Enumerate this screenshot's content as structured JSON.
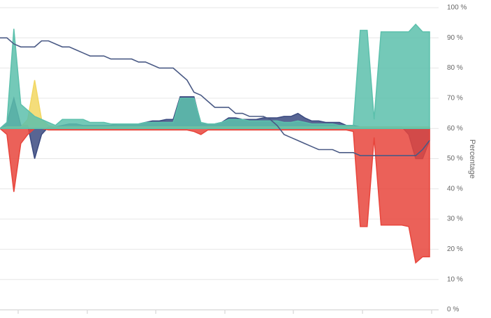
{
  "chart_data": {
    "type": "area",
    "y_axis_title": "Percentage",
    "ylim": [
      0,
      100
    ],
    "yticks": [
      {
        "value": 0,
        "label": "0 %"
      },
      {
        "value": 10,
        "label": "10 %"
      },
      {
        "value": 20,
        "label": "20 %"
      },
      {
        "value": 30,
        "label": "30 %"
      },
      {
        "value": 40,
        "label": "40 %"
      },
      {
        "value": 50,
        "label": "50 %"
      },
      {
        "value": 60,
        "label": "60 %"
      },
      {
        "value": 70,
        "label": "70 %"
      },
      {
        "value": 80,
        "label": "80 %"
      },
      {
        "value": 90,
        "label": "90 %"
      },
      {
        "value": 100,
        "label": "100 %"
      }
    ],
    "grid": true,
    "area_base": 60,
    "categories": [
      null,
      null,
      null,
      null,
      null,
      null,
      null,
      null,
      null,
      null,
      null,
      null,
      null,
      null,
      null,
      null,
      null,
      null,
      null,
      null,
      null,
      null,
      null,
      null,
      null,
      null,
      null,
      null,
      null,
      null,
      null,
      null,
      null,
      null,
      null,
      null,
      null,
      null,
      null,
      null,
      null,
      null,
      null,
      null,
      null,
      null,
      null,
      null,
      null,
      null,
      null,
      null,
      null,
      null,
      null,
      null,
      null,
      null,
      null,
      null,
      null,
      null,
      null
    ],
    "series": [
      {
        "kind": "area",
        "color": "#3b4a80",
        "values": [
          60,
          62,
          70,
          61,
          61,
          50,
          58,
          60.5,
          60.5,
          61,
          61.5,
          61.5,
          61,
          61,
          61,
          61,
          61,
          61.5,
          61.5,
          61.5,
          61.5,
          62,
          62.5,
          62.5,
          63,
          63,
          70.5,
          70.5,
          70.5,
          61.5,
          61.5,
          61.5,
          62,
          63.5,
          63.5,
          63,
          63,
          63,
          63.5,
          63.5,
          63.5,
          64,
          64,
          65,
          63.5,
          62.5,
          62.5,
          62,
          62,
          62,
          61,
          61,
          60.5,
          60.5,
          60.5,
          60.5,
          60.5,
          60.5,
          60.5,
          58,
          50,
          50,
          56
        ]
      },
      {
        "kind": "area",
        "color": "#e8453c",
        "values": [
          60,
          58,
          39,
          55,
          58,
          60,
          60,
          59.5,
          59.5,
          59.5,
          59.5,
          59.5,
          59.5,
          59.5,
          59.5,
          59.5,
          59.5,
          59.5,
          59.5,
          59.5,
          59.5,
          59.5,
          59.5,
          59.5,
          59.5,
          59.5,
          59.5,
          59.5,
          59,
          58,
          59.5,
          59.5,
          59.5,
          59.5,
          59.5,
          59.5,
          59.5,
          59.5,
          59.5,
          59.5,
          59.5,
          59.5,
          59.5,
          59.5,
          59.5,
          59.5,
          59.5,
          59.5,
          59.5,
          59.5,
          59.5,
          59,
          27.5,
          27.5,
          57,
          28,
          28,
          28,
          28,
          27.5,
          15.5,
          17.5,
          17.5
        ]
      },
      {
        "kind": "area",
        "color": "#f2d763",
        "values": [
          60,
          60.5,
          60.5,
          60.5,
          63,
          76,
          63,
          61,
          60.5,
          60.5,
          60.5,
          60.5,
          60.5,
          60.5,
          60.5,
          60.5,
          60.5,
          60.5,
          60.5,
          60.5,
          60.5,
          60.5,
          60.5,
          60.5,
          60.5,
          60.5,
          60.5,
          60.5,
          60.5,
          60.5,
          60.5,
          60.5,
          60.5,
          60.5,
          60.5,
          60.5,
          60.5,
          60.5,
          60.5,
          60.5,
          60.5,
          60.5,
          60.5,
          60.5,
          60.5,
          60.5,
          60.5,
          60.5,
          60.5,
          60.5,
          60.5,
          60.5,
          60.5,
          60.5,
          60.5,
          60.5,
          60.5,
          60.5,
          60.5,
          60.5,
          60.5,
          60.5,
          60.5
        ]
      },
      {
        "kind": "area",
        "color": "#5cc0ac",
        "values": [
          60,
          62,
          93,
          68,
          66,
          64,
          63,
          62,
          61,
          63,
          63,
          63,
          63,
          62,
          62,
          62,
          61.5,
          61.5,
          61.5,
          61.5,
          61.5,
          62,
          62,
          62,
          62,
          62,
          70,
          70,
          70,
          62,
          61.5,
          61.5,
          62,
          63,
          63,
          63,
          62.5,
          62.5,
          62.5,
          62.5,
          62.5,
          62,
          62,
          62.5,
          62,
          61.5,
          61.5,
          61.5,
          61.5,
          61,
          61,
          61,
          92.5,
          92.5,
          63,
          92,
          92,
          92,
          92,
          92,
          94.5,
          92,
          92
        ]
      },
      {
        "kind": "line",
        "color": "#4a5a85",
        "values": [
          90,
          90,
          88,
          87,
          87,
          87,
          89,
          89,
          88,
          87,
          87,
          86,
          85,
          84,
          84,
          84,
          83,
          83,
          83,
          83,
          82,
          82,
          81,
          80,
          80,
          80,
          78,
          76,
          72,
          71,
          69,
          67,
          67,
          67,
          65,
          65,
          64,
          64,
          64,
          63,
          61,
          58,
          57,
          56,
          55,
          54,
          53,
          53,
          53,
          52,
          52,
          52,
          51,
          51,
          51,
          51,
          51,
          51,
          51,
          51,
          51,
          53,
          56
        ]
      }
    ]
  }
}
